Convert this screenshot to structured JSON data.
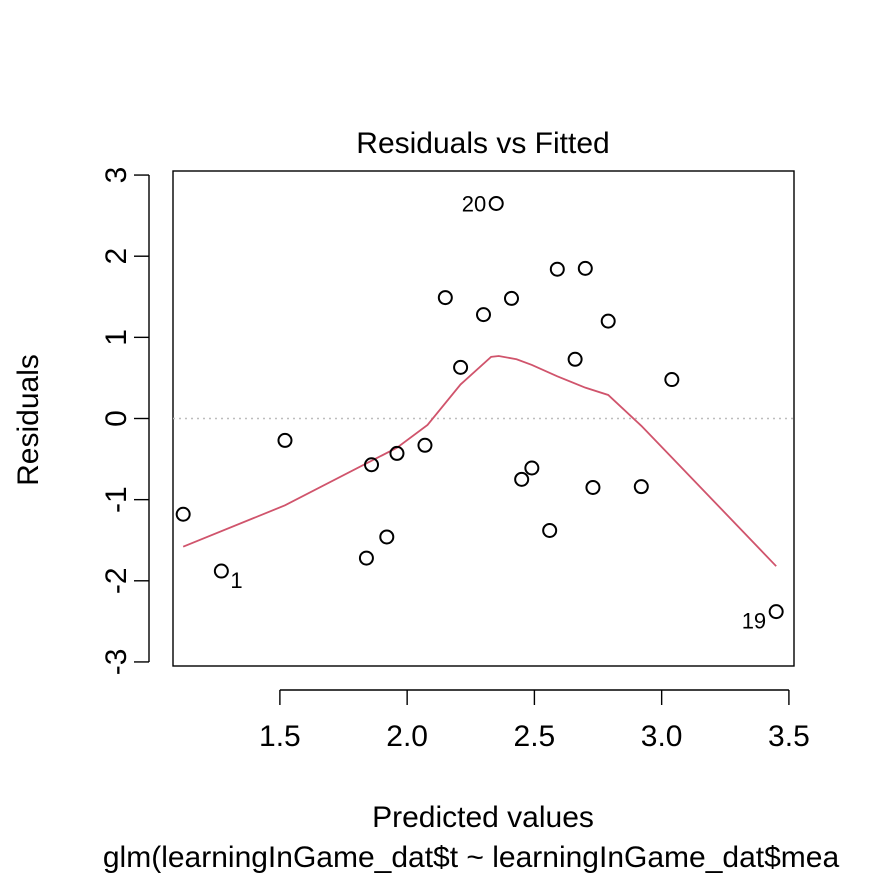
{
  "chart_data": {
    "type": "scatter",
    "title": "Residuals vs Fitted",
    "xlabel": "Predicted values",
    "subtitle": "glm(learningInGame_dat$t ~ learningInGame_dat$mea",
    "ylabel": "Residuals",
    "xlim": [
      1.08,
      3.52
    ],
    "ylim": [
      -3.05,
      3.05
    ],
    "xticks": [
      1.5,
      2.0,
      2.5,
      3.0,
      3.5
    ],
    "xtick_labels": [
      "1.5",
      "2.0",
      "2.5",
      "3.0",
      "3.5"
    ],
    "yticks": [
      -3,
      -2,
      -1,
      0,
      1,
      2,
      3
    ],
    "ytick_labels": [
      "-3",
      "-2",
      "-1",
      "0",
      "1",
      "2",
      "3"
    ],
    "reference_line": {
      "y": 0,
      "style": "dotted",
      "color": "#bdbdbd"
    },
    "points": [
      {
        "x": 1.12,
        "y": -1.18
      },
      {
        "x": 1.27,
        "y": -1.88,
        "label": "1"
      },
      {
        "x": 1.52,
        "y": -0.27
      },
      {
        "x": 1.84,
        "y": -1.72
      },
      {
        "x": 1.86,
        "y": -0.57
      },
      {
        "x": 1.92,
        "y": -1.46
      },
      {
        "x": 1.96,
        "y": -0.43
      },
      {
        "x": 2.07,
        "y": -0.33
      },
      {
        "x": 2.15,
        "y": 1.49
      },
      {
        "x": 2.21,
        "y": 0.63
      },
      {
        "x": 2.3,
        "y": 1.28
      },
      {
        "x": 2.35,
        "y": 2.65,
        "label": "20"
      },
      {
        "x": 2.41,
        "y": 1.48
      },
      {
        "x": 2.45,
        "y": -0.75
      },
      {
        "x": 2.49,
        "y": -0.61
      },
      {
        "x": 2.56,
        "y": -1.38
      },
      {
        "x": 2.59,
        "y": 1.84
      },
      {
        "x": 2.66,
        "y": 0.73
      },
      {
        "x": 2.7,
        "y": 1.85
      },
      {
        "x": 2.73,
        "y": -0.85
      },
      {
        "x": 2.79,
        "y": 1.2
      },
      {
        "x": 2.92,
        "y": -0.84
      },
      {
        "x": 3.04,
        "y": 0.48
      },
      {
        "x": 3.45,
        "y": -2.38,
        "label": "19"
      }
    ],
    "smooth_line": {
      "color": "#d0546c",
      "x": [
        1.12,
        1.52,
        1.96,
        2.08,
        2.21,
        2.33,
        2.36,
        2.43,
        2.49,
        2.59,
        2.7,
        2.79,
        2.92,
        3.04,
        3.45
      ],
      "y": [
        -1.58,
        -1.07,
        -0.36,
        -0.08,
        0.42,
        0.76,
        0.77,
        0.73,
        0.66,
        0.52,
        0.38,
        0.29,
        -0.09,
        -0.48,
        -1.82
      ]
    },
    "grid": false,
    "legend": "none"
  }
}
